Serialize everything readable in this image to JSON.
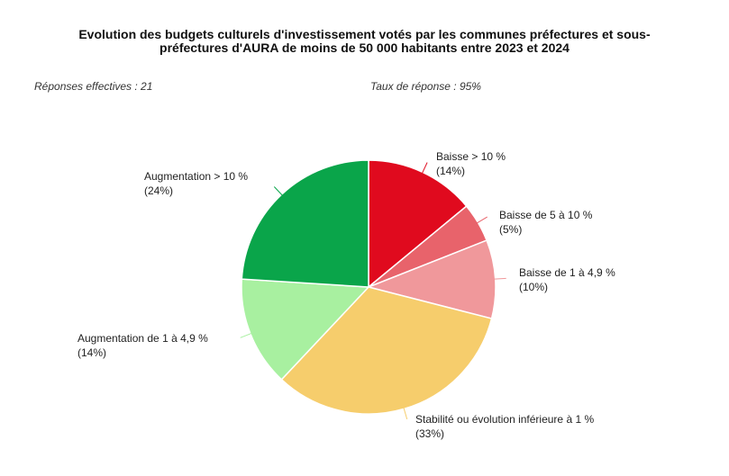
{
  "chart_data": {
    "type": "pie",
    "title": {
      "line1": "Evolution des budgets culturels d'investissement votés par les communes préfectures et sous-",
      "line2": "préfectures d'AURA de moins de 50 000 habitants entre 2023 et 2024"
    },
    "subtitle_left": "Réponses effectives : 21",
    "subtitle_right": "Taux de réponse : 95%",
    "slices": [
      {
        "label": "Baisse > 10 %",
        "value": 14,
        "pct_label": "(14%)",
        "color": "#e00a1e"
      },
      {
        "label": "Baisse de 5 à 10 %",
        "value": 5,
        "pct_label": "(5%)",
        "color": "#e8636b"
      },
      {
        "label": "Baisse de 1 à 4,9 %",
        "value": 10,
        "pct_label": "(10%)",
        "color": "#f0989b"
      },
      {
        "label": "Stabilité ou évolution inférieure à 1 %",
        "value": 33,
        "pct_label": "(33%)",
        "color": "#f6cd6c"
      },
      {
        "label": "Augmentation de 1 à 4,9 %",
        "value": 14,
        "pct_label": "(14%)",
        "color": "#a8f0a0"
      },
      {
        "label": "Augmentation > 10 %",
        "value": 24,
        "pct_label": "(24%)",
        "color": "#0aa54a"
      }
    ],
    "legend": "none",
    "direction": "clockwise from top"
  }
}
